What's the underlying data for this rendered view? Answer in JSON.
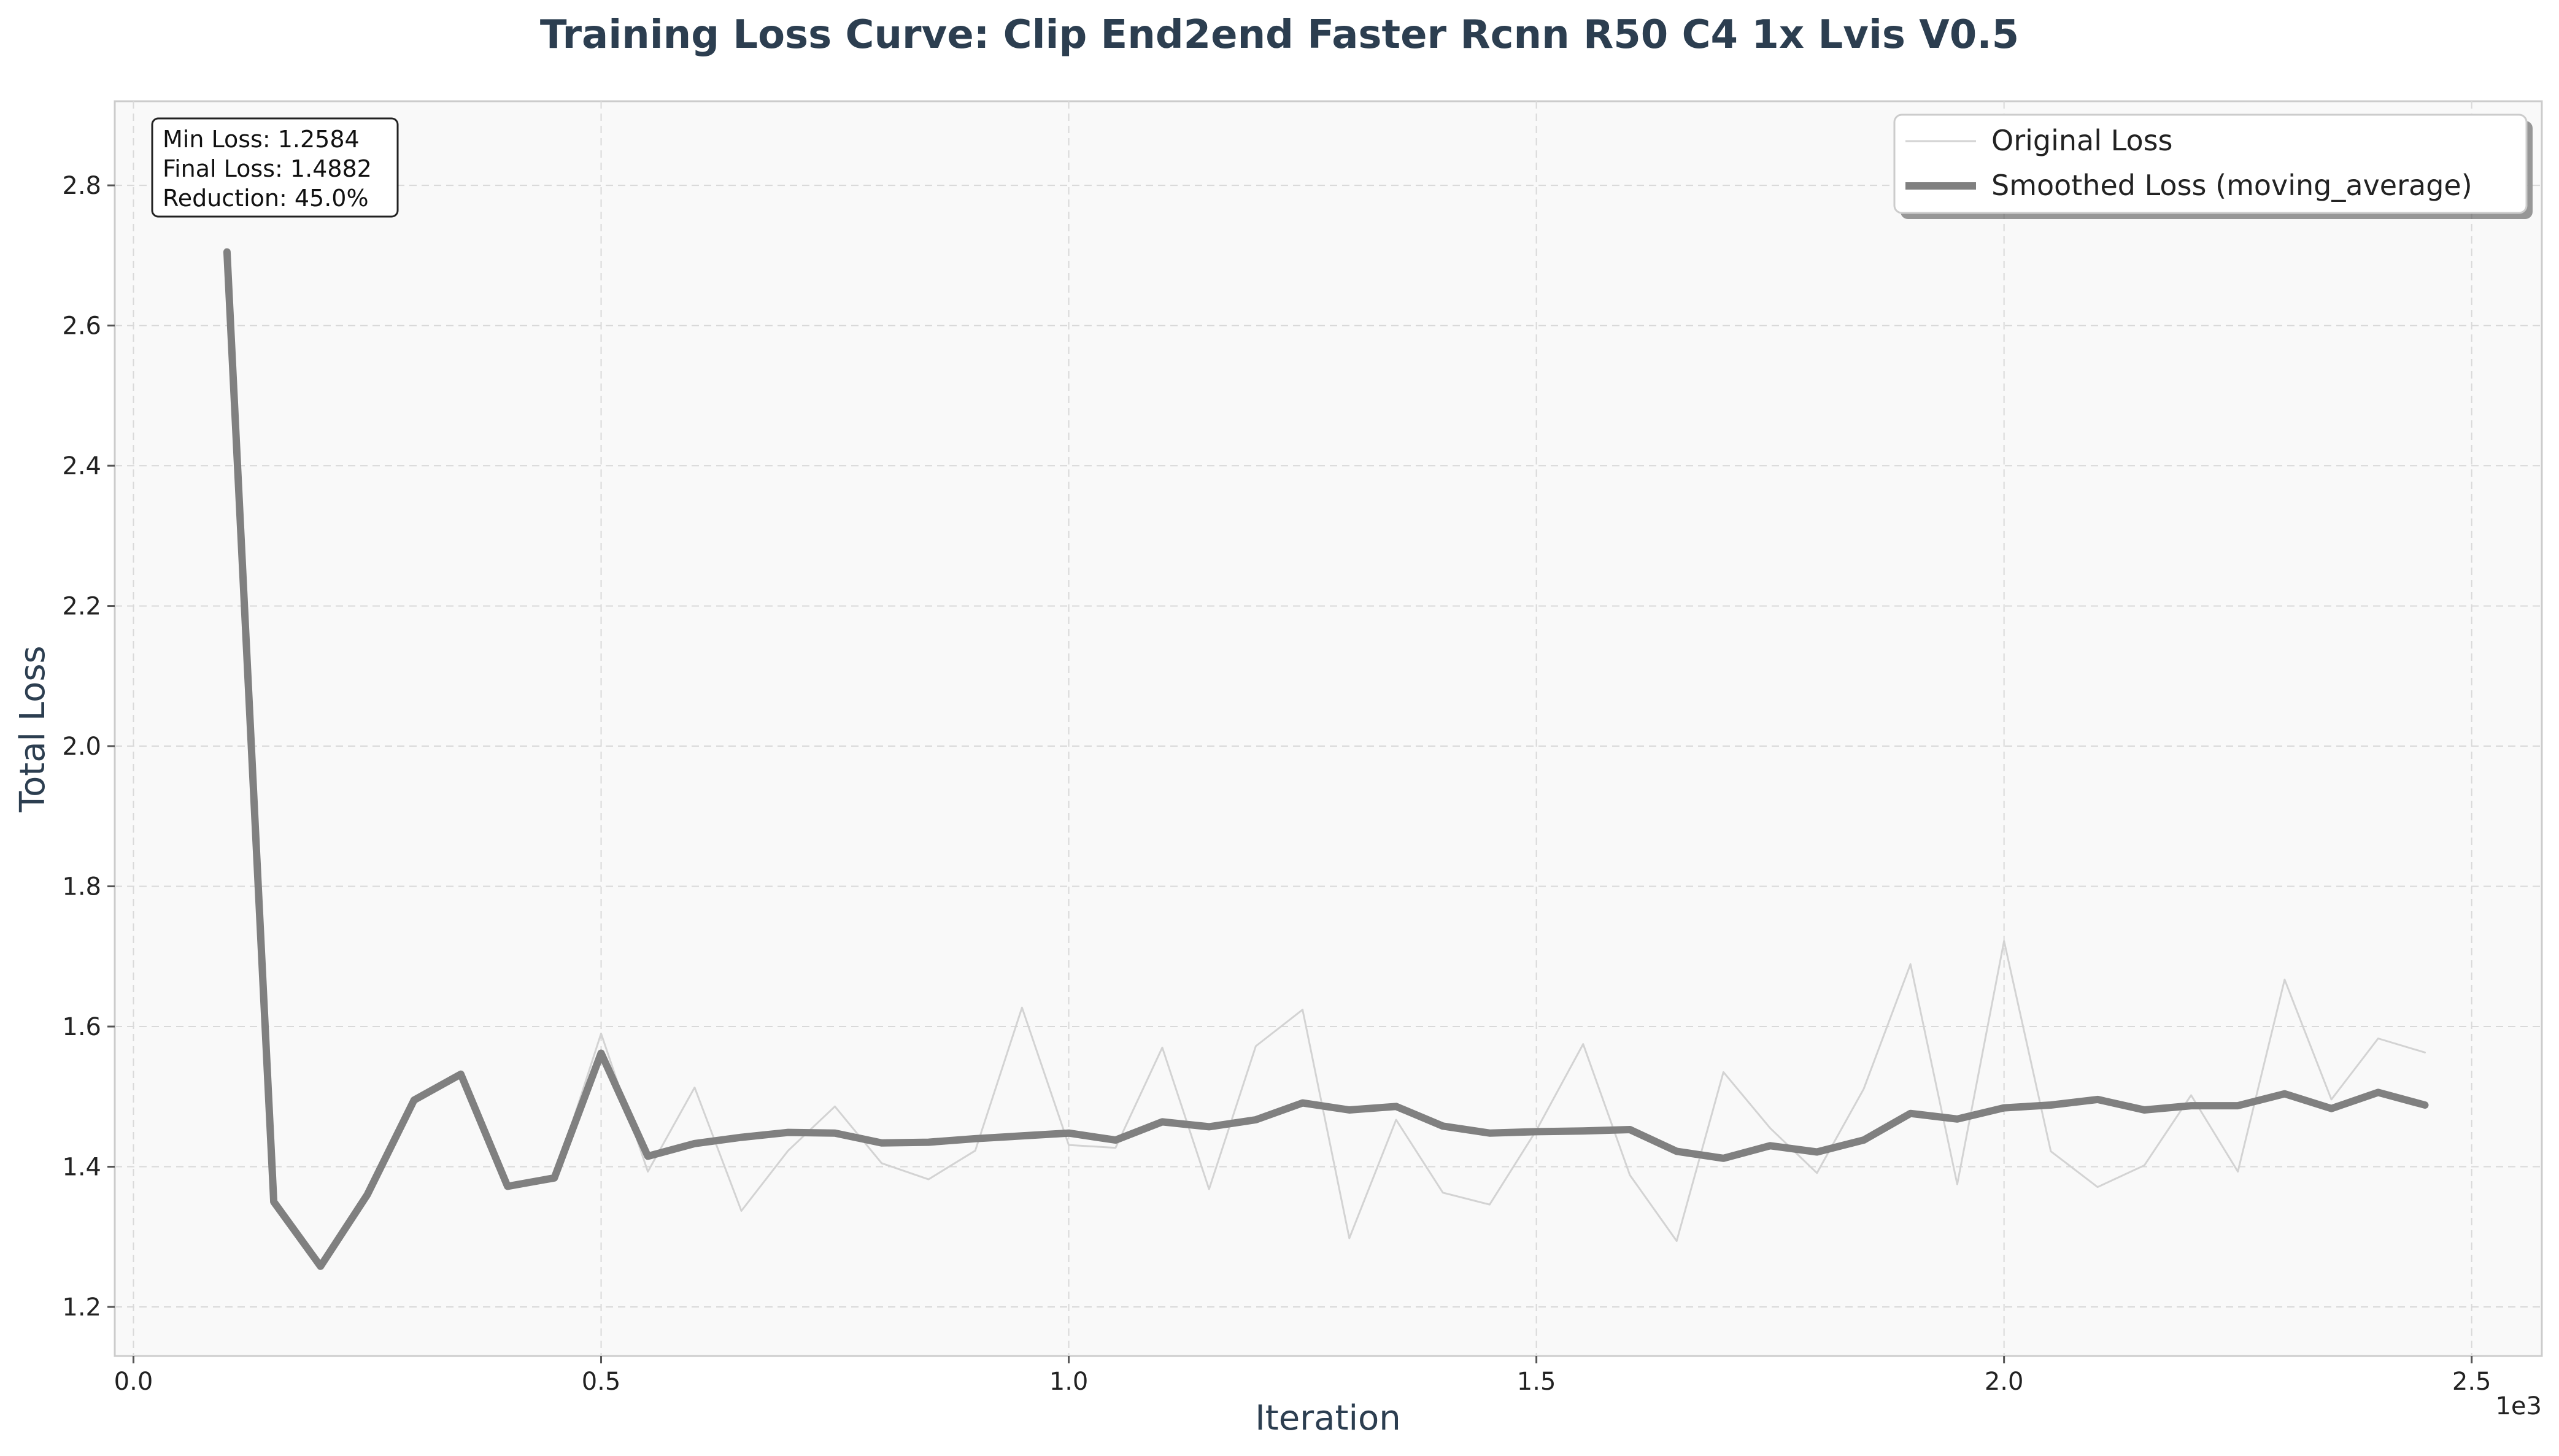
{
  "chart_data": {
    "type": "line",
    "title": "Training Loss Curve: Clip End2end Faster Rcnn R50 C4 1x Lvis V0.5",
    "xlabel": "Iteration",
    "ylabel": "Total Loss",
    "x_offset_label": "1e3",
    "xlim": [
      -0.02,
      2.575
    ],
    "ylim": [
      1.13,
      2.92
    ],
    "xticks": [
      0.0,
      0.5,
      1.0,
      1.5,
      2.0,
      2.5
    ],
    "xtick_labels": [
      "0.0",
      "0.5",
      "1.0",
      "1.5",
      "2.0",
      "2.5"
    ],
    "yticks": [
      1.2,
      1.4,
      1.6,
      1.8,
      2.0,
      2.2,
      2.4,
      2.6,
      2.8
    ],
    "ytick_labels": [
      "1.2",
      "1.4",
      "1.6",
      "1.8",
      "2.0",
      "2.2",
      "2.4",
      "2.6",
      "2.8"
    ],
    "grid": true,
    "legend_position": "top-right",
    "x": [
      0.1,
      0.15,
      0.2,
      0.25,
      0.3,
      0.35,
      0.4,
      0.45,
      0.5,
      0.55,
      0.6,
      0.65,
      0.7,
      0.75,
      0.8,
      0.85,
      0.9,
      0.95,
      1.0,
      1.05,
      1.1,
      1.15,
      1.2,
      1.25,
      1.3,
      1.35,
      1.4,
      1.45,
      1.5,
      1.55,
      1.6,
      1.65,
      1.7,
      1.75,
      1.8,
      1.85,
      1.9,
      1.95,
      2.0,
      2.05,
      2.1,
      2.15,
      2.2,
      2.25,
      2.3,
      2.35,
      2.4,
      2.45
    ],
    "series": [
      {
        "name": "Original Loss",
        "color": "#d3d3d3",
        "values": [
          2.705,
          1.35,
          1.258,
          1.36,
          1.495,
          1.532,
          1.372,
          1.384,
          1.59,
          1.393,
          1.513,
          1.337,
          1.423,
          1.486,
          1.405,
          1.382,
          1.423,
          1.627,
          1.431,
          1.427,
          1.57,
          1.368,
          1.572,
          1.624,
          1.298,
          1.467,
          1.363,
          1.346,
          1.452,
          1.575,
          1.388,
          1.294,
          1.535,
          1.455,
          1.391,
          1.511,
          1.689,
          1.375,
          1.722,
          1.422,
          1.371,
          1.402,
          1.502,
          1.393,
          1.667,
          1.496,
          1.583,
          1.563
        ]
      },
      {
        "name": "Smoothed Loss (moving_average)",
        "color": "#808080",
        "values": [
          2.705,
          1.35,
          1.258,
          1.36,
          1.495,
          1.532,
          1.372,
          1.384,
          1.562,
          1.415,
          1.433,
          1.442,
          1.449,
          1.448,
          1.434,
          1.435,
          1.44,
          1.444,
          1.448,
          1.438,
          1.464,
          1.457,
          1.467,
          1.491,
          1.481,
          1.486,
          1.458,
          1.448,
          1.45,
          1.451,
          1.453,
          1.422,
          1.412,
          1.43,
          1.421,
          1.438,
          1.476,
          1.468,
          1.484,
          1.488,
          1.496,
          1.481,
          1.487,
          1.487,
          1.504,
          1.483,
          1.506,
          1.488
        ]
      }
    ]
  },
  "stats": {
    "min_loss": "Min Loss: 1.2584",
    "final_loss": "Final Loss: 1.4882",
    "reduction": "Reduction: 45.0%"
  }
}
